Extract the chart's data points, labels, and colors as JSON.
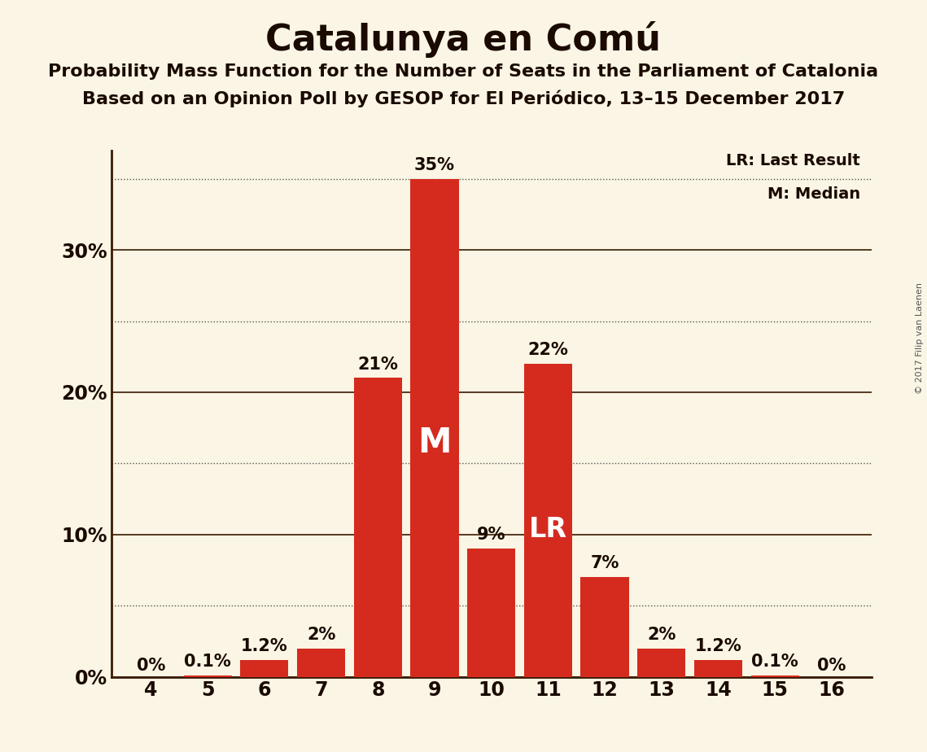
{
  "title": "Catalunya en Comú",
  "subtitle1": "Probability Mass Function for the Number of Seats in the Parliament of Catalonia",
  "subtitle2": "Based on an Opinion Poll by GESOP for El Periódico, 13–15 December 2017",
  "copyright": "© 2017 Filip van Laenen",
  "seats": [
    4,
    5,
    6,
    7,
    8,
    9,
    10,
    11,
    12,
    13,
    14,
    15,
    16
  ],
  "values": [
    0.0,
    0.1,
    1.2,
    2.0,
    21.0,
    35.0,
    9.0,
    22.0,
    7.0,
    2.0,
    1.2,
    0.1,
    0.0
  ],
  "bar_color": "#d42b1e",
  "background_color": "#faf5e4",
  "median_seat": 9,
  "lr_seat": 11,
  "legend_lr": "LR: Last Result",
  "legend_m": "M: Median",
  "ylim": [
    0,
    37
  ],
  "solid_lines": [
    0,
    10,
    20,
    30
  ],
  "dotted_lines": [
    5,
    15,
    25,
    35
  ],
  "ytick_positions": [
    0,
    10,
    20,
    30
  ],
  "ytick_labels": [
    "0%",
    "10%",
    "20%",
    "30%"
  ],
  "bar_labels": [
    "0%",
    "0.1%",
    "1.2%",
    "2%",
    "21%",
    "35%",
    "9%",
    "22%",
    "7%",
    "2%",
    "1.2%",
    "0.1%",
    "0%"
  ],
  "median_label": "M",
  "lr_label": "LR",
  "title_fontsize": 32,
  "subtitle_fontsize": 16,
  "bar_label_fontsize": 15,
  "axis_label_fontsize": 17,
  "spine_color": "#3a1a00",
  "text_color": "#1a0a00",
  "grid_color": "#555555"
}
